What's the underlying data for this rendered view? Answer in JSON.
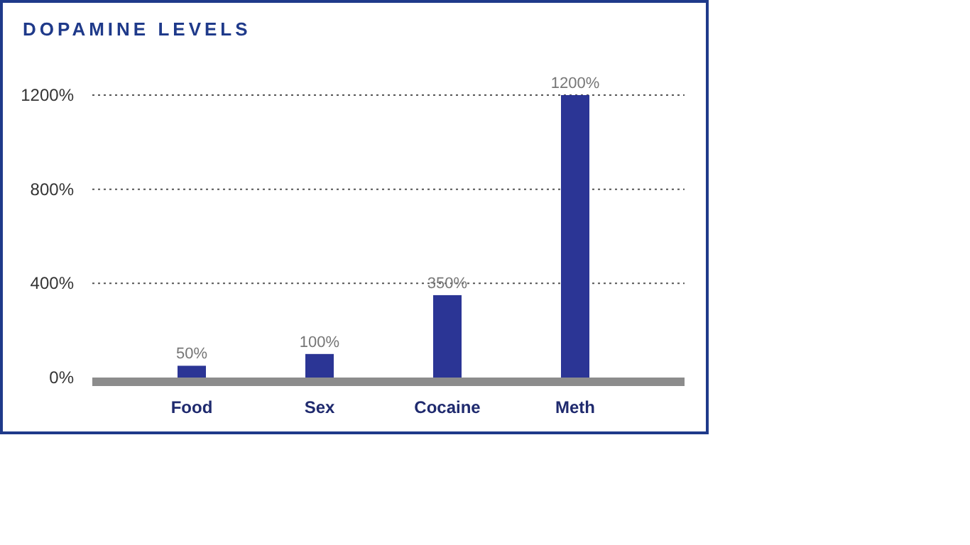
{
  "chart_data": {
    "type": "bar",
    "title": "DOPAMINE LEVELS",
    "categories": [
      "Food",
      "Sex",
      "Cocaine",
      "Meth"
    ],
    "values": [
      50,
      100,
      350,
      1200
    ],
    "value_labels": [
      "50%",
      "100%",
      "350%",
      "1200%"
    ],
    "color": "#2b3595",
    "ylim": [
      0,
      1200
    ],
    "yticks": [
      {
        "value": 0,
        "label": "0%"
      },
      {
        "value": 400,
        "label": "400%"
      },
      {
        "value": 800,
        "label": "800%"
      },
      {
        "value": 1200,
        "label": "1200%"
      }
    ],
    "grid": "y"
  }
}
